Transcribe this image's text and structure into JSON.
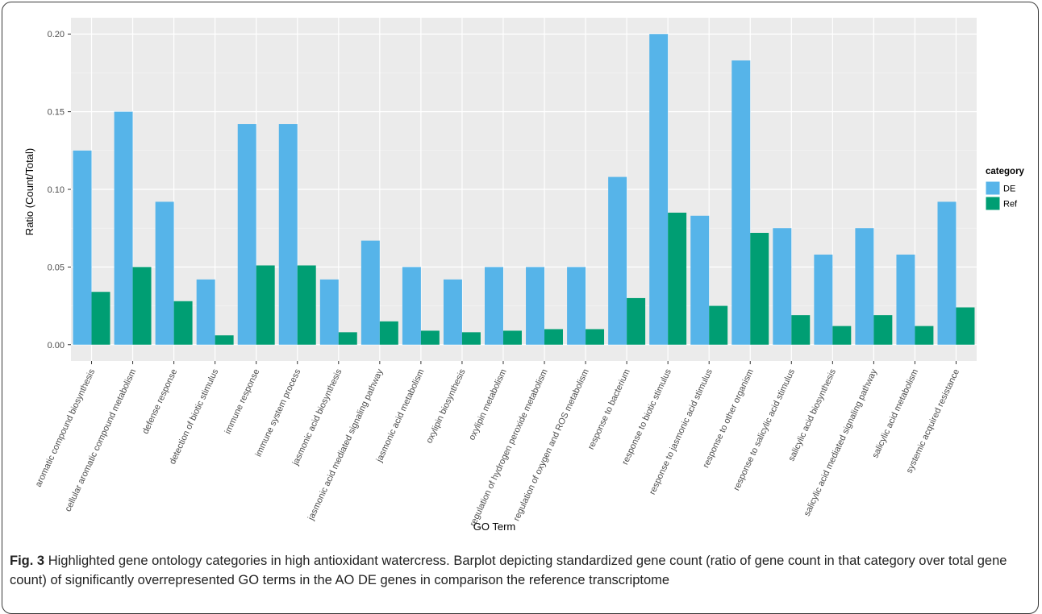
{
  "figure": {
    "caption_label": "Fig. 3",
    "caption_text": "Highlighted gene ontology categories in high antioxidant watercress. Barplot depicting standardized gene count (ratio of gene count in that category over total gene count) of significantly overrepresented GO terms in the AO DE genes in comparison the reference transcriptome"
  },
  "chart_data": {
    "type": "bar",
    "xlabel": "GO Term",
    "ylabel": "Ratio (Count/Total)",
    "ylim": [
      -0.0105,
      0.2105
    ],
    "yticks": [
      0.0,
      0.05,
      0.1,
      0.15,
      0.2
    ],
    "ytick_labels": [
      "0.00",
      "0.05",
      "0.10",
      "0.15",
      "0.20"
    ],
    "grid": true,
    "legend": {
      "title": "category",
      "position": "right"
    },
    "categories": [
      "aromatic compound biosynthesis",
      "cellular aromatic compound metabolism",
      "defense response",
      "detection of biotic stimulus",
      "immune response",
      "immune system process",
      "jasmonic acid biosynthesis",
      "jasmonic acid mediated signaling pathway",
      "jasmonic acid metabolism",
      "oxylipin biosynthesis",
      "oxylipin metabolism",
      "regulation of hydrogen peroxide metabolism",
      "regulation of oxygen and ROS metabolism",
      "response to bacterium",
      "response to biotic stimulus",
      "response to jasmonic acid stimulus",
      "response to other organism",
      "response to salicylic acid stimulus",
      "salicylic acid biosynthesis",
      "salicylic acid mediated signaling pathway",
      "salicylic acid metabolism",
      "systemic acquired resistance"
    ],
    "series": [
      {
        "name": "DE",
        "color": "#56b4e9",
        "values": [
          0.125,
          0.15,
          0.092,
          0.042,
          0.142,
          0.142,
          0.042,
          0.067,
          0.05,
          0.042,
          0.05,
          0.05,
          0.05,
          0.108,
          0.2,
          0.083,
          0.183,
          0.075,
          0.058,
          0.075,
          0.058,
          0.092
        ]
      },
      {
        "name": "Ref",
        "color": "#009e73",
        "values": [
          0.034,
          0.05,
          0.028,
          0.006,
          0.051,
          0.051,
          0.008,
          0.015,
          0.009,
          0.008,
          0.009,
          0.01,
          0.01,
          0.03,
          0.085,
          0.025,
          0.072,
          0.019,
          0.012,
          0.019,
          0.012,
          0.024
        ]
      }
    ]
  }
}
